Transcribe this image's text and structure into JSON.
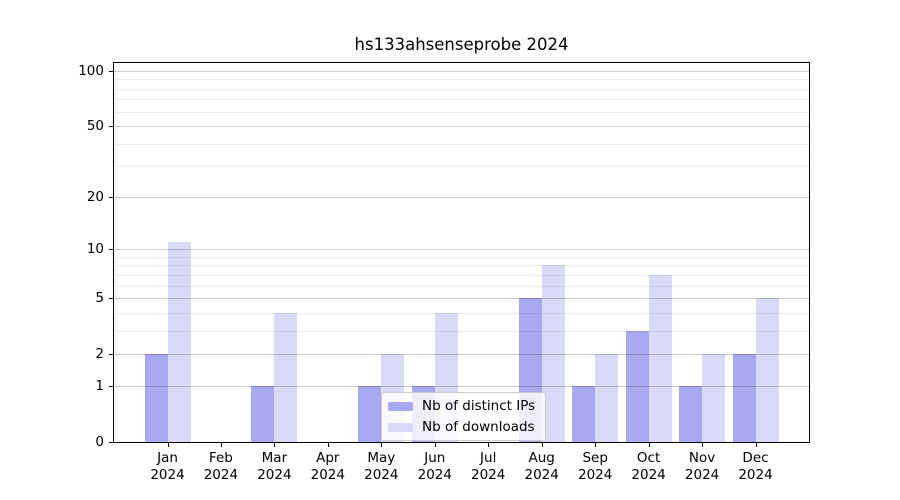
{
  "title": "hs133ahsenseprobe 2024",
  "colors": {
    "distinct_ips": "#a9a9f1",
    "downloads": "#d9d9f8",
    "grid_major": "rgba(0,0,0,0.20)",
    "grid_minor": "rgba(0,0,0,0.08)",
    "axis": "#000000",
    "legend_bg": "rgba(255,255,255,0.8)",
    "legend_border": "#cccccc"
  },
  "legend": {
    "items": [
      {
        "label": "Nb of distinct IPs",
        "color_key": "distinct_ips"
      },
      {
        "label": "Nb of downloads",
        "color_key": "downloads"
      }
    ]
  },
  "chart_data": {
    "type": "bar",
    "title": "hs133ahsenseprobe 2024",
    "categories": [
      "Jan",
      "Feb",
      "Mar",
      "Apr",
      "May",
      "Jun",
      "Jul",
      "Aug",
      "Sep",
      "Oct",
      "Nov",
      "Dec"
    ],
    "year_label": "2024",
    "series": [
      {
        "name": "Nb of distinct IPs",
        "color": "#a9a9f1",
        "values": [
          2,
          0,
          1,
          0,
          1,
          1,
          0,
          5,
          1,
          3,
          1,
          2
        ]
      },
      {
        "name": "Nb of downloads",
        "color": "#d9d9f8",
        "values": [
          11,
          0,
          4,
          0,
          2,
          4,
          0,
          8,
          2,
          7,
          2,
          5
        ]
      }
    ],
    "yscale": "log1p",
    "ylim": [
      0,
      110.6
    ],
    "yticks": [
      0,
      1,
      2,
      5,
      10,
      20,
      50,
      100
    ],
    "minor_yticks": [
      3,
      4,
      6,
      7,
      8,
      9,
      30,
      40,
      60,
      70,
      80,
      90
    ],
    "grid": true,
    "grid_above_bars": true,
    "legend_position": "lower center"
  }
}
